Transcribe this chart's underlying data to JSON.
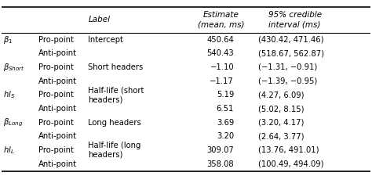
{
  "col1_display": [
    "$\\beta_1$",
    "",
    "$\\beta_{Short}$",
    "",
    "$hl_S$",
    "",
    "$\\beta_{Long}$",
    "",
    "$hl_L$",
    ""
  ],
  "col2": [
    "Pro-point",
    "Anti-point",
    "Pro-point",
    "Anti-point",
    "Pro-point",
    "Anti-point",
    "Pro-point",
    "Anti-point",
    "Pro-point",
    "Anti-point"
  ],
  "col3": [
    "Intercept",
    "",
    "Short headers",
    "",
    "Half-life (short\nheaders)",
    "",
    "Long headers",
    "",
    "Half-life (long\nheaders)",
    ""
  ],
  "col4": [
    "450.64",
    "540.43",
    "-1.10",
    "-1.17",
    "5.19",
    "6.51",
    "3.69",
    "3.20",
    "309.07",
    "358.08"
  ],
  "col4_display": [
    "450.64",
    "540.43",
    "−1.10",
    "−1.17",
    "5.19",
    "6.51",
    "3.69",
    "3.20",
    "309.07",
    "358.08"
  ],
  "col5": [
    "(430.42, 471.46)",
    "(518.67, 562.87)",
    "(−1.31, −0.91)",
    "(−1.39, −0.95)",
    "(4.27, 6.09)",
    "(5.02, 8.15)",
    "(3.20, 4.17)",
    "(2.64, 3.77)",
    "(13.76, 491.01)",
    "(100.49, 494.09)"
  ],
  "header_col3": "Label",
  "header_col4": "Estimate\n(mean, ms)",
  "header_col5": "95% credible\ninterval (ms)",
  "bg_color": "#ffffff",
  "text_color": "#000000",
  "font_size": 7.2,
  "header_font_size": 7.5
}
